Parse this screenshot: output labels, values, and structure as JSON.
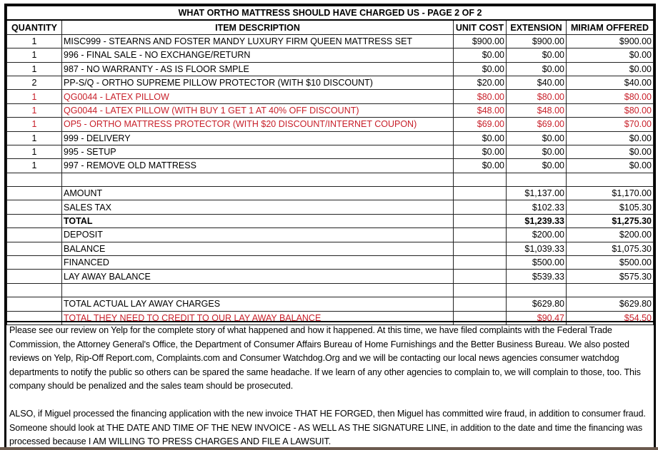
{
  "title": "WHAT ORTHO MATTRESS SHOULD HAVE CHARGED US - PAGE 2 OF 2",
  "headers": [
    "QUANTITY",
    "ITEM DESCRIPTION",
    "UNIT COST",
    "EXTENSION",
    "MIRIAM OFFERED"
  ],
  "items": [
    {
      "qty": "1",
      "desc": "MISC999 - STEARNS AND FOSTER MANDY LUXURY FIRM QUEEN MATTRESS SET",
      "unit": "$900.00",
      "ext": "$900.00",
      "miriam": "$900.00",
      "red": false
    },
    {
      "qty": "1",
      "desc": "996 - FINAL SALE - NO EXCHANGE/RETURN",
      "unit": "$0.00",
      "ext": "$0.00",
      "miriam": "$0.00",
      "red": false
    },
    {
      "qty": "1",
      "desc": "987 - NO WARRANTY - AS IS FLOOR SMPLE",
      "unit": "$0.00",
      "ext": "$0.00",
      "miriam": "$0.00",
      "red": false
    },
    {
      "qty": "2",
      "desc": "PP-S/Q - ORTHO SUPREME PILLOW PROTECTOR (WITH $10 DISCOUNT)",
      "unit": "$20.00",
      "ext": "$40.00",
      "miriam": "$40.00",
      "red": false
    },
    {
      "qty": "1",
      "desc": "QG0044 - LATEX PILLOW",
      "unit": "$80.00",
      "ext": "$80.00",
      "miriam": "$80.00",
      "red": true
    },
    {
      "qty": "1",
      "desc": "QG0044 - LATEX PILLOW (WITH BUY 1 GET 1 AT 40% OFF DISCOUNT)",
      "unit": "$48.00",
      "ext": "$48.00",
      "miriam": "$80.00",
      "red": true
    },
    {
      "qty": "1",
      "desc": "OP5 - ORTHO MATTRESS PROTECTOR (WITH $20 DISCOUNT/INTERNET COUPON)",
      "unit": "$69.00",
      "ext": "$69.00",
      "miriam": "$70.00",
      "red": true
    },
    {
      "qty": "1",
      "desc": "999 - DELIVERY",
      "unit": "$0.00",
      "ext": "$0.00",
      "miriam": "$0.00",
      "red": false
    },
    {
      "qty": "1",
      "desc": "995 - SETUP",
      "unit": "$0.00",
      "ext": "$0.00",
      "miriam": "$0.00",
      "red": false
    },
    {
      "qty": "1",
      "desc": "997 - REMOVE OLD MATTRESS",
      "unit": "$0.00",
      "ext": "$0.00",
      "miriam": "$0.00",
      "red": false
    }
  ],
  "summary": [
    {
      "label": "AMOUNT",
      "ext": "$1,137.00",
      "miriam": "$1,170.00"
    },
    {
      "label": "SALES TAX",
      "ext": "$102.33",
      "miriam": "$105.30"
    },
    {
      "label": "TOTAL",
      "ext": "$1,239.33",
      "miriam": "$1,275.30",
      "bold": true
    },
    {
      "label": "DEPOSIT",
      "ext": "$200.00",
      "miriam": "$200.00"
    },
    {
      "label": "BALANCE",
      "ext": "$1,039.33",
      "miriam": "$1,075.30"
    },
    {
      "label": "FINANCED",
      "ext": "$500.00",
      "miriam": "$500.00"
    },
    {
      "label": "LAY AWAY BALANCE",
      "ext": "$539.33",
      "miriam": "$575.30"
    }
  ],
  "final": [
    {
      "label": "TOTAL ACTUAL LAY AWAY CHARGES",
      "ext": "$629.80",
      "miriam": "$629.80"
    },
    {
      "label": "TOTAL THEY NEED TO CREDIT TO OUR LAY AWAY BALANCE",
      "ext": "$90.47",
      "miriam": "$54.50",
      "red": true
    }
  ],
  "notes": {
    "p1": "Please see our review on Yelp for the complete story of what happened and how it happened. At this time, we have filed complaints with the Federal Trade Commission, the Attorney General's Office, the Department of Consumer Affairs Bureau of Home Furnishings and the Better Business Bureau. We also posted reviews on Yelp, Rip-Off Report.com, Complaints.com and Consumer Watchdog.Org and we will be contacting our local news agencies consumer watchdog departments to notify the public so others can be spared the same headache. If we learn of any other agencies to complain to, we will complain to those, too. This company should be penalized and the sales team should be prosecuted.",
    "p2": "ALSO, if Miguel processed the financing application with the new invoice THAT HE FORGED, then Miguel has committed wire fraud, in addition to consumer fraud.  Someone should look at THE DATE AND TIME OF THE NEW INVOICE - AS WELL AS THE SIGNATURE LINE, in addition to the date and time the financing was processed because I AM WILLING TO PRESS CHARGES AND FILE A LAWSUIT."
  },
  "colors": {
    "red": "#c8202a"
  }
}
